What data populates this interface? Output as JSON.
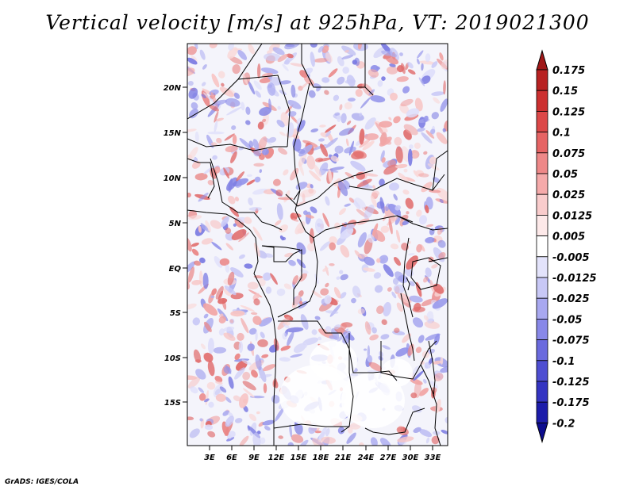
{
  "title": "Vertical velocity [m/s] at 925hPa, VT: 2019021300",
  "credit": "GrADS: IGES/COLA",
  "map": {
    "lon_labels": [
      "3E",
      "6E",
      "9E",
      "12E",
      "15E",
      "18E",
      "21E",
      "24E",
      "27E",
      "30E",
      "33E"
    ],
    "lat_labels": [
      "20N",
      "15N",
      "10N",
      "5N",
      "EQ",
      "5S",
      "10S",
      "15S"
    ],
    "field": "vertical velocity",
    "units": "m/s",
    "level": "925hPa",
    "valid_time": "2019021300"
  },
  "colorbar": {
    "labels": [
      "0.175",
      "0.15",
      "0.125",
      "0.1",
      "0.075",
      "0.05",
      "0.025",
      "0.0125",
      "0.005",
      "-0.005",
      "-0.0125",
      "-0.025",
      "-0.05",
      "-0.075",
      "-0.1",
      "-0.125",
      "-0.175",
      "-0.2"
    ],
    "colors": [
      "#a01818",
      "#b82222",
      "#cc3030",
      "#dc4848",
      "#e66464",
      "#ee8888",
      "#f5aaaa",
      "#f9cccc",
      "#fde9e9",
      "#ffffff",
      "#e3e3fb",
      "#c8c8f6",
      "#a8a8f0",
      "#8888e8",
      "#6a6ade",
      "#4e4ed2",
      "#3434c2",
      "#1c1caa",
      "#0c0c8e"
    ]
  },
  "colors": {
    "positive": "#e87a7a",
    "negative": "#8c8cf0",
    "border": "#000000"
  }
}
